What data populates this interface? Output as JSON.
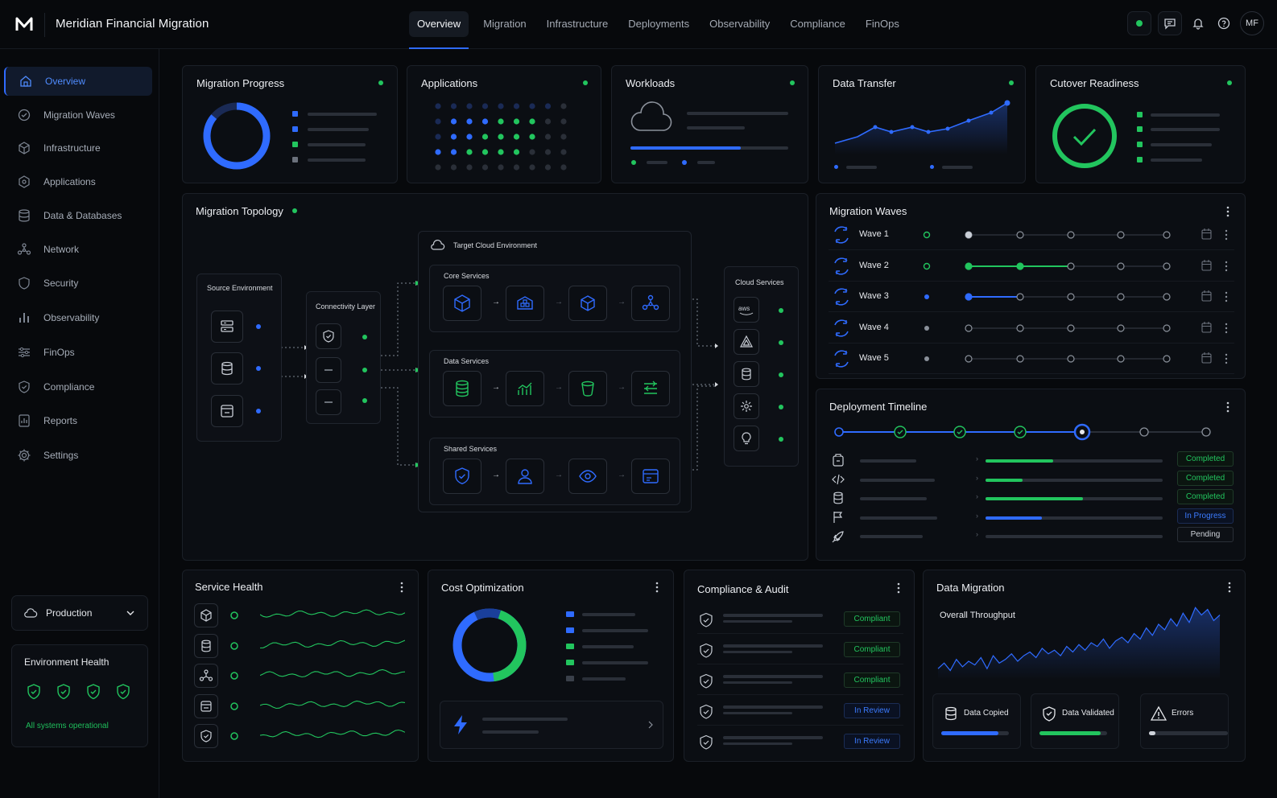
{
  "app": {
    "title": "Meridian Financial Migration",
    "avatar": "MF"
  },
  "nav_tabs": [
    "Overview",
    "Migration",
    "Infrastructure",
    "Deployments",
    "Observability",
    "Compliance",
    "FinOps"
  ],
  "sidebar": {
    "items": [
      {
        "label": "Overview",
        "icon": "home-icon",
        "active": true
      },
      {
        "label": "Migration Waves",
        "icon": "waves-icon"
      },
      {
        "label": "Infrastructure",
        "icon": "cube-icon"
      },
      {
        "label": "Applications",
        "icon": "app-icon"
      },
      {
        "label": "Data & Databases",
        "icon": "database-icon"
      },
      {
        "label": "Network",
        "icon": "network-icon"
      },
      {
        "label": "Security",
        "icon": "shield-icon"
      },
      {
        "label": "Observability",
        "icon": "bar-chart-icon"
      },
      {
        "label": "FinOps",
        "icon": "sliders-icon"
      },
      {
        "label": "Compliance",
        "icon": "shield-check-icon"
      },
      {
        "label": "Reports",
        "icon": "report-icon"
      },
      {
        "label": "Settings",
        "icon": "gear-icon"
      }
    ],
    "environment": "Production",
    "env_health": {
      "title": "Environment Health",
      "status": "All systems operational"
    }
  },
  "cards": {
    "migration_progress": "Migration Progress",
    "applications": "Applications",
    "workloads": "Workloads",
    "data_transfer": "Data Transfer",
    "cutover_readiness": "Cutover Readiness",
    "topology": "Migration Topology",
    "migration_waves": "Migration Waves",
    "deployment_timeline": "Deployment Timeline",
    "service_health": "Service Health",
    "cost_optimization": "Cost Optimization",
    "compliance_audit": "Compliance & Audit",
    "data_migration": "Data Migration"
  },
  "topology": {
    "target": "Target Cloud Environment",
    "source": "Source Environment",
    "connectivity": "Connectivity Layer",
    "core": "Core Services",
    "data": "Data Services",
    "shared": "Shared Services",
    "cloud": "Cloud Services"
  },
  "waves": [
    {
      "label": "Wave 1",
      "progress": 0
    },
    {
      "label": "Wave 2",
      "progress": 0.5
    },
    {
      "label": "Wave 3",
      "progress": 0.25
    },
    {
      "label": "Wave 4",
      "progress": 0
    },
    {
      "label": "Wave 5",
      "progress": 0
    }
  ],
  "deployment_rows": [
    {
      "status": "Completed",
      "progress": 0.38,
      "type": "green"
    },
    {
      "status": "Completed",
      "progress": 0.21,
      "type": "green"
    },
    {
      "status": "Completed",
      "progress": 0.55,
      "type": "green"
    },
    {
      "status": "In Progress",
      "progress": 0.32,
      "type": "blue"
    },
    {
      "status": "Pending",
      "progress": 0,
      "type": "gray"
    }
  ],
  "compliance_rows": [
    "Compliant",
    "Compliant",
    "Compliant",
    "In Review",
    "In Review"
  ],
  "data_migration": {
    "subtitle": "Overall Throughput",
    "stats": [
      {
        "label": "Data Copied",
        "progress": 0.85,
        "color": "#2f6bff"
      },
      {
        "label": "Data Validated",
        "progress": 0.9,
        "color": "#22c55e"
      },
      {
        "label": "Errors",
        "progress": 0.08,
        "color": "#cfd3da"
      }
    ]
  },
  "colors": {
    "accent": "#2f6bff",
    "success": "#22c55e",
    "bg": "#07090c"
  }
}
